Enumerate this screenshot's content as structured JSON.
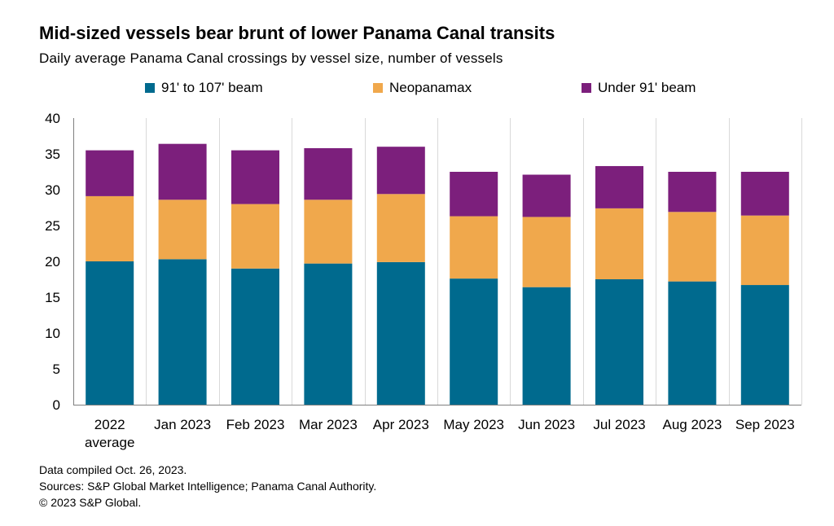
{
  "colors": {
    "series": [
      "#006a8e",
      "#f0a84c",
      "#7c1f7c"
    ],
    "grid": "#d9d9d9",
    "axis": "#7f7f7f"
  },
  "chart_data": {
    "type": "bar",
    "stacked": true,
    "title": "Mid-sized vessels bear brunt of lower Panama Canal transits",
    "subtitle": "Daily average Panama Canal crossings by vessel size, number of vessels",
    "categories": [
      [
        "2022",
        "average"
      ],
      [
        "Jan 2023"
      ],
      [
        "Feb 2023"
      ],
      [
        "Mar 2023"
      ],
      [
        "Apr 2023"
      ],
      [
        "May 2023"
      ],
      [
        "Jun 2023"
      ],
      [
        "Jul 2023"
      ],
      [
        "Aug 2023"
      ],
      [
        "Sep 2023"
      ]
    ],
    "series": [
      {
        "name": "91' to 107' beam",
        "values": [
          20.0,
          20.3,
          19.0,
          19.7,
          19.9,
          17.6,
          16.4,
          17.5,
          17.2,
          16.7
        ]
      },
      {
        "name": "Neopanamax",
        "values": [
          9.1,
          8.3,
          9.0,
          8.9,
          9.5,
          8.7,
          9.8,
          9.9,
          9.7,
          9.7
        ]
      },
      {
        "name": "Under 91' beam",
        "values": [
          6.4,
          7.8,
          7.5,
          7.2,
          6.6,
          6.2,
          5.9,
          5.9,
          5.6,
          6.1
        ]
      }
    ],
    "ylim": [
      0,
      40
    ],
    "yticks": [
      0,
      5,
      10,
      15,
      20,
      25,
      30,
      35,
      40
    ],
    "xlabel": "",
    "ylabel": "",
    "legend_position": "top",
    "grid": "vertical"
  },
  "footer": {
    "compiled": "Data compiled Oct. 26, 2023.",
    "sources": "Sources: S&P Global Market Intelligence; Panama Canal Authority.",
    "copyright": "© 2023 S&P Global."
  }
}
